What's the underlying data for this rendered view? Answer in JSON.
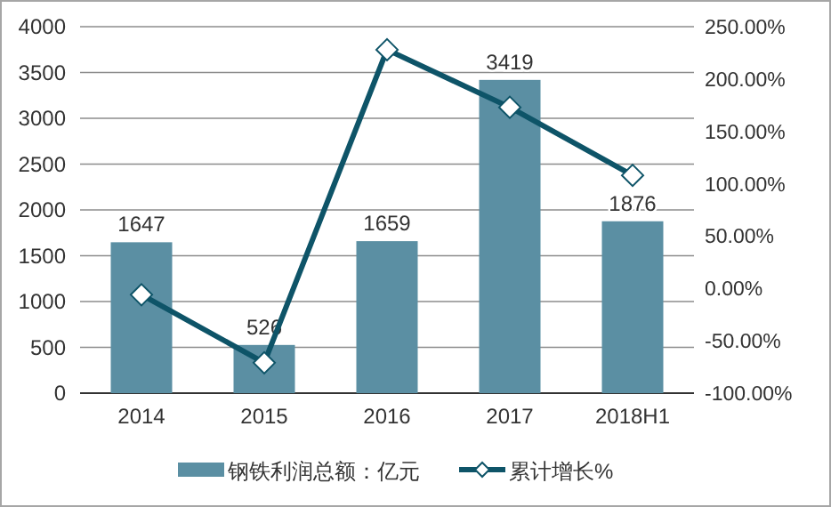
{
  "chart_data": {
    "type": "bar",
    "categories": [
      "2014",
      "2015",
      "2016",
      "2017",
      "2018H1"
    ],
    "series": [
      {
        "name": "钢铁利润总额：亿元",
        "color": "#5b8fa3",
        "values": [
          1647,
          526,
          1659,
          3419,
          1876
        ],
        "value_labels": [
          "1647",
          "526",
          "1659",
          "3419",
          "1876"
        ]
      },
      {
        "name": "累计增长%",
        "type": "line",
        "axis": "y2",
        "color": "#0e5468",
        "marker": "diamond",
        "values": [
          -6,
          -71,
          228,
          173,
          108
        ]
      }
    ],
    "ylim": [
      0,
      4000
    ],
    "yticks": [
      0,
      500,
      1000,
      1500,
      2000,
      2500,
      3000,
      3500,
      4000
    ],
    "y2lim": [
      -100,
      250
    ],
    "y2ticks": [
      {
        "value": -100,
        "label": "-100.00%"
      },
      {
        "value": -50,
        "label": "-50.00%"
      },
      {
        "value": 0,
        "label": "0.00%"
      },
      {
        "value": 50,
        "label": "50.00%"
      },
      {
        "value": 100,
        "label": "100.00%"
      },
      {
        "value": 150,
        "label": "150.00%"
      },
      {
        "value": 200,
        "label": "200.00%"
      },
      {
        "value": 250,
        "label": "250.00%"
      }
    ],
    "grid": "y",
    "legend": "bottom"
  }
}
